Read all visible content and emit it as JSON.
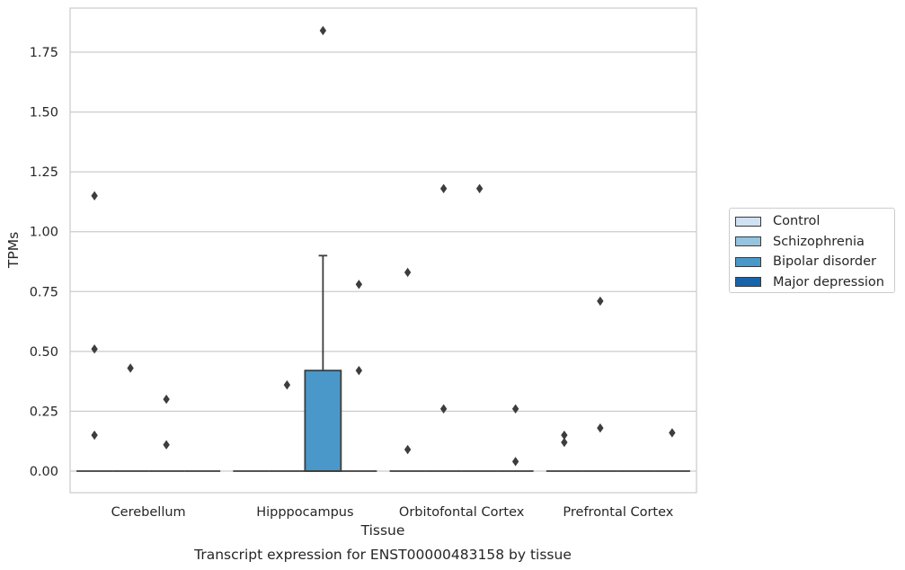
{
  "chart_data": {
    "type": "box",
    "title": "Transcript expression for ENST00000483158 by tissue",
    "xlabel": "Tissue",
    "ylabel": "TPMs",
    "ylim": [
      -0.09,
      1.94
    ],
    "yticks": [
      "0.00",
      "0.25",
      "0.50",
      "0.75",
      "1.00",
      "1.25",
      "1.50",
      "1.75"
    ],
    "categories": [
      "Cerebellum",
      "Hipppocampus",
      "Orbitofontal Cortex",
      "Prefrontal Cortex"
    ],
    "grid": true,
    "legend_position": "right",
    "series": [
      {
        "name": "Control",
        "color": "#d0e1f2"
      },
      {
        "name": "Schizophrenia",
        "color": "#94c4df"
      },
      {
        "name": "Bipolar disorder",
        "color": "#4a98c9"
      },
      {
        "name": "Major depression",
        "color": "#1764ab"
      }
    ],
    "boxes": [
      {
        "category": 0,
        "series": 0,
        "q1": 0,
        "median": 0,
        "q3": 0,
        "whisker_low": 0,
        "whisker_high": 0,
        "outliers": [
          0.15,
          0.51,
          1.15
        ]
      },
      {
        "category": 0,
        "series": 1,
        "q1": 0,
        "median": 0,
        "q3": 0,
        "whisker_low": 0,
        "whisker_high": 0,
        "outliers": [
          0.43
        ]
      },
      {
        "category": 0,
        "series": 2,
        "q1": 0,
        "median": 0,
        "q3": 0,
        "whisker_low": 0,
        "whisker_high": 0,
        "outliers": [
          0.11,
          0.3
        ]
      },
      {
        "category": 0,
        "series": 3,
        "q1": 0,
        "median": 0,
        "q3": 0,
        "whisker_low": 0,
        "whisker_high": 0,
        "outliers": []
      },
      {
        "category": 1,
        "series": 0,
        "q1": 0,
        "median": 0,
        "q3": 0,
        "whisker_low": 0,
        "whisker_high": 0,
        "outliers": []
      },
      {
        "category": 1,
        "series": 1,
        "q1": 0,
        "median": 0,
        "q3": 0,
        "whisker_low": 0,
        "whisker_high": 0,
        "outliers": [
          0.36
        ]
      },
      {
        "category": 1,
        "series": 2,
        "q1": 0,
        "median": 0,
        "q3": 0.42,
        "whisker_low": 0,
        "whisker_high": 0.9,
        "outliers": [
          1.84
        ]
      },
      {
        "category": 1,
        "series": 3,
        "q1": 0,
        "median": 0,
        "q3": 0,
        "whisker_low": 0,
        "whisker_high": 0,
        "outliers": [
          0.42,
          0.78
        ]
      },
      {
        "category": 2,
        "series": 0,
        "q1": 0,
        "median": 0,
        "q3": 0,
        "whisker_low": 0,
        "whisker_high": 0,
        "outliers": [
          0.09,
          0.83
        ]
      },
      {
        "category": 2,
        "series": 1,
        "q1": 0,
        "median": 0,
        "q3": 0,
        "whisker_low": 0,
        "whisker_high": 0,
        "outliers": [
          0.26,
          1.18
        ]
      },
      {
        "category": 2,
        "series": 2,
        "q1": 0,
        "median": 0,
        "q3": 0,
        "whisker_low": 0,
        "whisker_high": 0,
        "outliers": [
          1.18
        ]
      },
      {
        "category": 2,
        "series": 3,
        "q1": 0,
        "median": 0,
        "q3": 0,
        "whisker_low": 0,
        "whisker_high": 0,
        "outliers": [
          0.04,
          0.26
        ]
      },
      {
        "category": 3,
        "series": 0,
        "q1": 0,
        "median": 0,
        "q3": 0,
        "whisker_low": 0,
        "whisker_high": 0,
        "outliers": [
          0.12,
          0.15
        ]
      },
      {
        "category": 3,
        "series": 1,
        "q1": 0,
        "median": 0,
        "q3": 0,
        "whisker_low": 0,
        "whisker_high": 0,
        "outliers": [
          0.71,
          0.18
        ]
      },
      {
        "category": 3,
        "series": 2,
        "q1": 0,
        "median": 0,
        "q3": 0,
        "whisker_low": 0,
        "whisker_high": 0,
        "outliers": []
      },
      {
        "category": 3,
        "series": 3,
        "q1": 0,
        "median": 0,
        "q3": 0,
        "whisker_low": 0,
        "whisker_high": 0,
        "outliers": [
          0.16
        ]
      }
    ]
  }
}
